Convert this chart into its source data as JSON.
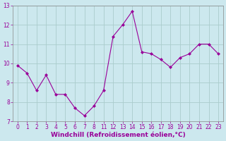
{
  "x_indices": [
    0,
    1,
    2,
    3,
    4,
    5,
    6,
    7,
    8,
    9,
    10,
    11,
    12,
    13,
    14,
    15,
    16,
    17,
    18,
    19,
    20,
    21
  ],
  "x_labels": [
    "0",
    "1",
    "2",
    "3",
    "4",
    "5",
    "6",
    "7",
    "8",
    "11",
    "12",
    "13",
    "14",
    "15",
    "16",
    "17",
    "18",
    "19",
    "20",
    "21",
    "22",
    "23"
  ],
  "y": [
    9.9,
    9.5,
    8.6,
    9.4,
    8.4,
    8.4,
    7.7,
    7.3,
    7.8,
    8.6,
    11.4,
    12.0,
    12.7,
    10.6,
    10.5,
    10.2,
    9.8,
    10.3,
    10.5,
    11.0,
    11.0,
    10.5
  ],
  "line_color": "#990099",
  "marker_color": "#990099",
  "bg_color": "#cce8ee",
  "grid_color": "#aacccc",
  "xlabel": "Windchill (Refroidissement éolien,°C)",
  "xlabel_color": "#990099",
  "ylim": [
    7,
    13
  ],
  "yticks": [
    7,
    8,
    9,
    10,
    11,
    12,
    13
  ],
  "tick_color": "#990099",
  "tick_label_size": 5.5,
  "xlabel_size": 6.5,
  "spine_color": "#888888"
}
